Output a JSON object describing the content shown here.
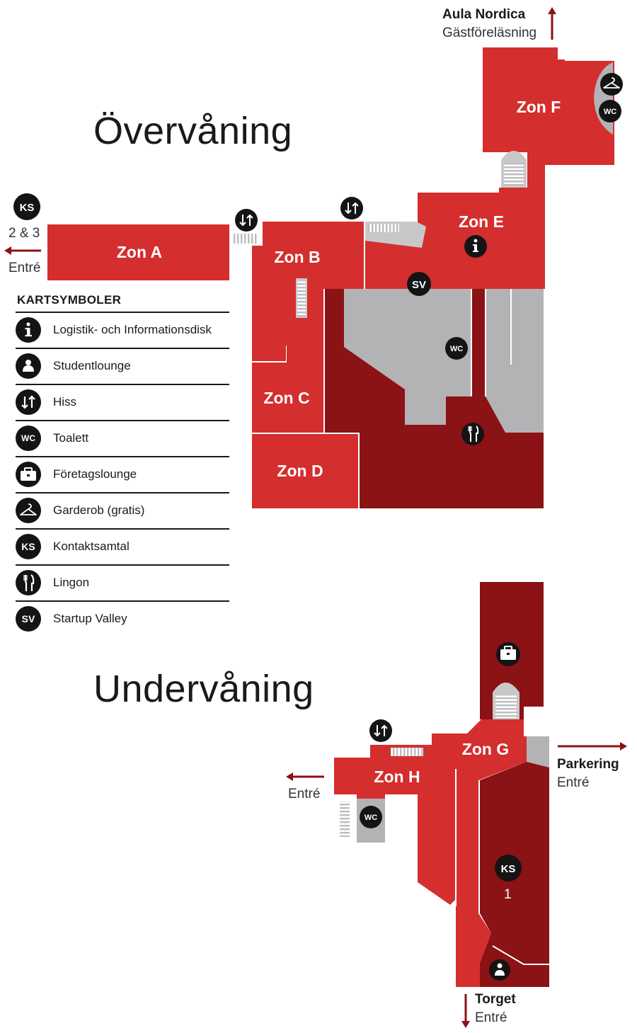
{
  "floors": {
    "upper_title": "Övervåning",
    "lower_title": "Undervåning"
  },
  "zones": {
    "a": "Zon A",
    "b": "Zon B",
    "c": "Zon C",
    "d": "Zon D",
    "e": "Zon E",
    "f": "Zon F",
    "g": "Zon G",
    "h": "Zon H"
  },
  "labels": {
    "aula_title": "Aula Nordica",
    "aula_sub": "Gästföreläsning",
    "ks_upper_num": "2 & 3",
    "entre_left": "Entré",
    "entre_h": "Entré",
    "parkering_title": "Parkering",
    "parkering_sub": "Entré",
    "torget_title": "Torget",
    "torget_sub": "Entré",
    "ks_lower_num": "1"
  },
  "icons": {
    "ks": "KS",
    "sv": "SV",
    "wc": "WC"
  },
  "legend": {
    "title": "KARTSYMBOLER",
    "items": [
      {
        "icon": "info-icon",
        "label": "Logistik- och Informationsdisk"
      },
      {
        "icon": "person-icon",
        "label": "Studentlounge"
      },
      {
        "icon": "elevator-icon",
        "label": "Hiss"
      },
      {
        "icon": "wc-icon",
        "label": "Toalett"
      },
      {
        "icon": "briefcase-icon",
        "label": "Företagslounge"
      },
      {
        "icon": "hanger-icon",
        "label": "Garderob (gratis)"
      },
      {
        "icon": "ks-icon",
        "label": "Kontaktsamtal"
      },
      {
        "icon": "cutlery-icon",
        "label": "Lingon"
      },
      {
        "icon": "sv-icon",
        "label": "Startup Valley"
      }
    ]
  },
  "colors": {
    "zone_red": "#d42e2e",
    "zone_dark_red": "#8b1215",
    "corridor_gray": "#b3b3b5",
    "stairs_gray": "#c8c8ca",
    "icon_black": "#141414",
    "arrow_red": "#8b1215"
  }
}
